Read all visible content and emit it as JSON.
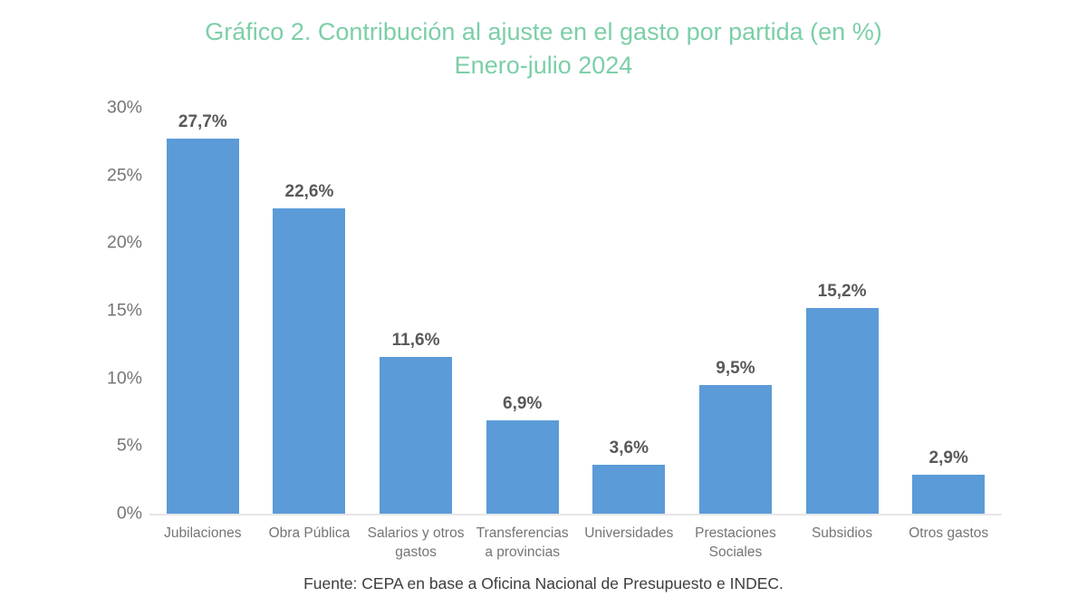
{
  "title": {
    "line1": "Gráfico 2. Contribución al ajuste en el gasto por partida (en %)",
    "line2": "Enero-julio 2024"
  },
  "footer": {
    "source": "Fuente: CEPA en base a Oficina Nacional de Presupuesto e INDEC."
  },
  "colors": {
    "background": "#ffffff",
    "bar": "#5b9bd8",
    "title": "#7ccfa7",
    "axis_label": "#757575",
    "data_label": "#58595b",
    "axis_line": "#e6e6e6",
    "footer_text": "#3d3d3d"
  },
  "chart_data": {
    "type": "bar",
    "title": "Gráfico 2. Contribución al ajuste en el gasto por partida (en %) Enero-julio 2024",
    "title_lines": [
      "Gráfico 2. Contribución al ajuste en el gasto por partida (en %)",
      "Enero-julio 2024"
    ],
    "categories": [
      "Jubilaciones",
      "Obra Pública",
      "Salarios y otros gastos",
      "Transferencias a provincias",
      "Universidades",
      "Prestaciones Sociales",
      "Subsidios",
      "Otros gastos"
    ],
    "values": [
      27.7,
      22.6,
      11.6,
      6.9,
      3.6,
      9.5,
      15.2,
      2.9
    ],
    "value_labels": [
      "27,7%",
      "22,6%",
      "11,6%",
      "6,9%",
      "3,6%",
      "9,5%",
      "15,2%",
      "2,9%"
    ],
    "xlabel": "",
    "ylabel": "",
    "ylim": [
      0,
      30
    ],
    "yticks": [
      0,
      5,
      10,
      15,
      20,
      25,
      30
    ],
    "ytick_labels": [
      "0%",
      "5%",
      "10%",
      "15%",
      "20%",
      "25%",
      "30%"
    ],
    "grid": false,
    "legend": false,
    "bar_color": "#5b9bd8",
    "source_note": "Fuente: CEPA en base a Oficina Nacional de Presupuesto e INDEC."
  }
}
